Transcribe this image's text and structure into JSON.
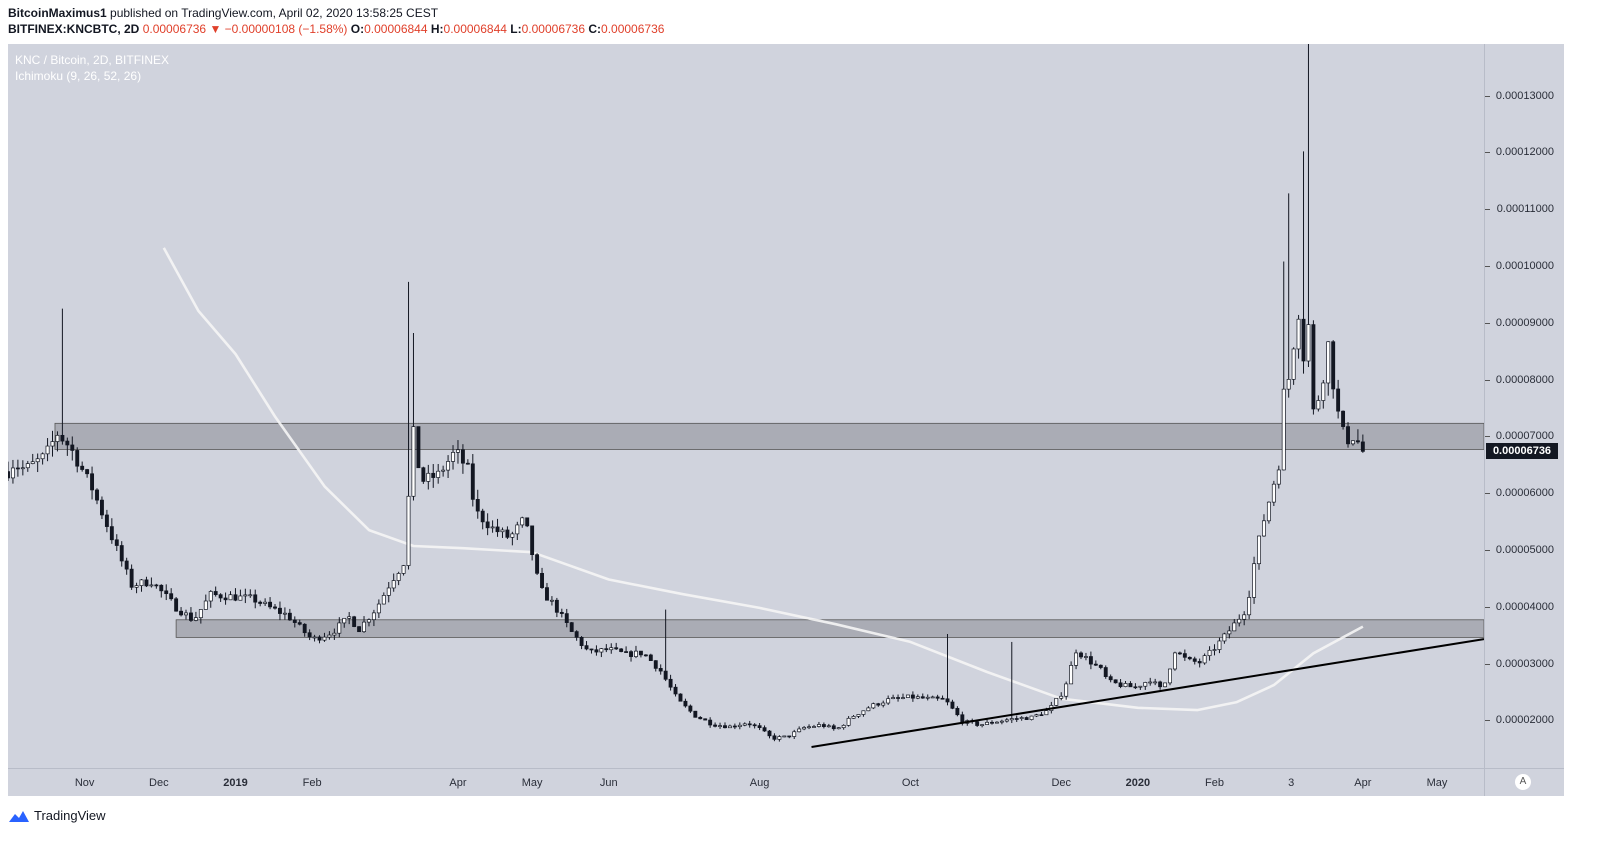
{
  "header": {
    "author": "BitcoinMaximus1",
    "published_text": " published on TradingView.com, April 02, 2020 13:58:25 CEST",
    "symbol": "BITFINEX:KNCBTC, 2D",
    "last": "0.00006736",
    "change": "▼ −0.00000108 (−1.58%)",
    "o_label": "O:",
    "o_value": "0.00006844",
    "h_label": "H:",
    "h_value": "0.00006844",
    "l_label": "L:",
    "l_value": "0.00006736",
    "c_label": "C:",
    "c_value": "0.00006736"
  },
  "legend": {
    "title": "KNC / Bitcoin, 2D, BITFINEX",
    "indicator": "Ichimoku (9, 26, 52, 26)"
  },
  "price_badge": "0.00006736",
  "auto_label": "A",
  "footer": {
    "brand": "TradingView"
  },
  "colors": {
    "background": "#d0d3dd",
    "candle_up_fill": "#ffffff",
    "candle_down_fill": "#131722",
    "candle_wick": "#131722",
    "zone": "#8a8c93",
    "moving_average": "#f5f5f5",
    "trendline": "#000000",
    "logo_blue": "#2962ff"
  },
  "chart_data": {
    "type": "candlestick",
    "title": "KNC / Bitcoin, 2D, BITFINEX",
    "indicator": "Ichimoku (9, 26, 52, 26)",
    "y_axis": {
      "range": [
        1.16e-05,
        0.0001391
      ],
      "ticks": [
        "0.00002000",
        "0.00003000",
        "0.00004000",
        "0.00005000",
        "0.00006000",
        "0.00007000",
        "0.00008000",
        "0.00009000",
        "0.00010000",
        "0.00011000",
        "0.00012000",
        "0.00013000"
      ],
      "tick_values": [
        2e-05,
        3e-05,
        4e-05,
        5e-05,
        6e-05,
        7e-05,
        8e-05,
        9e-05,
        0.0001,
        0.00011,
        0.00012,
        0.00013
      ],
      "position": "right"
    },
    "x_axis": {
      "range": [
        "2018-10-01",
        "2020-05-20"
      ],
      "ticks": [
        {
          "label": "Nov",
          "date": "2018-11-01",
          "bold": false
        },
        {
          "label": "Dec",
          "date": "2018-12-01",
          "bold": false
        },
        {
          "label": "2019",
          "date": "2019-01-01",
          "bold": true
        },
        {
          "label": "Feb",
          "date": "2019-02-01",
          "bold": false
        },
        {
          "label": "Apr",
          "date": "2019-04-01",
          "bold": false
        },
        {
          "label": "May",
          "date": "2019-05-01",
          "bold": false
        },
        {
          "label": "Jun",
          "date": "2019-06-01",
          "bold": false
        },
        {
          "label": "Aug",
          "date": "2019-08-01",
          "bold": false
        },
        {
          "label": "Oct",
          "date": "2019-10-01",
          "bold": false
        },
        {
          "label": "Dec",
          "date": "2019-12-01",
          "bold": false
        },
        {
          "label": "2020",
          "date": "2020-01-01",
          "bold": true
        },
        {
          "label": "Feb",
          "date": "2020-02-01",
          "bold": false
        },
        {
          "label": "3",
          "date": "2020-03-03",
          "bold": false
        },
        {
          "label": "Apr",
          "date": "2020-04-01",
          "bold": false
        },
        {
          "label": "May",
          "date": "2020-05-01",
          "bold": false
        }
      ]
    },
    "grid": false,
    "last_price": 6.736e-05,
    "close_anchors": [
      [
        "2018-10-01",
        6.38e-05
      ],
      [
        "2018-10-03",
        6.51e-05
      ],
      [
        "2018-10-08",
        6.42e-05
      ],
      [
        "2018-10-16",
        6.65e-05
      ],
      [
        "2018-10-21",
        7.05e-05
      ],
      [
        "2018-10-26",
        6.82e-05
      ],
      [
        "2018-11-04",
        6.09e-05
      ],
      [
        "2018-11-13",
        5.12e-05
      ],
      [
        "2018-11-20",
        4.38e-05
      ],
      [
        "2018-11-28",
        4.45e-05
      ],
      [
        "2018-12-03",
        4.22e-05
      ],
      [
        "2018-12-08",
        3.99e-05
      ],
      [
        "2018-12-15",
        3.76e-05
      ],
      [
        "2018-12-22",
        4.21e-05
      ],
      [
        "2018-12-30",
        4.18e-05
      ],
      [
        "2019-01-08",
        4.14e-05
      ],
      [
        "2019-01-15",
        3.98e-05
      ],
      [
        "2019-01-22",
        3.85e-05
      ],
      [
        "2019-02-01",
        3.42e-05
      ],
      [
        "2019-02-09",
        3.55e-05
      ],
      [
        "2019-02-16",
        3.81e-05
      ],
      [
        "2019-02-20",
        3.61e-05
      ],
      [
        "2019-02-27",
        3.98e-05
      ],
      [
        "2019-03-05",
        4.45e-05
      ],
      [
        "2019-03-10",
        4.78e-05
      ],
      [
        "2019-03-14",
        7.05e-05
      ],
      [
        "2019-03-17",
        6.21e-05
      ],
      [
        "2019-03-24",
        6.32e-05
      ],
      [
        "2019-03-31",
        6.74e-05
      ],
      [
        "2019-04-05",
        6.41e-05
      ],
      [
        "2019-04-08",
        5.68e-05
      ],
      [
        "2019-04-15",
        5.38e-05
      ],
      [
        "2019-04-22",
        5.21e-05
      ],
      [
        "2019-04-28",
        5.55e-05
      ],
      [
        "2019-05-04",
        4.32e-05
      ],
      [
        "2019-05-10",
        4.02e-05
      ],
      [
        "2019-05-17",
        3.55e-05
      ],
      [
        "2019-05-24",
        3.19e-05
      ],
      [
        "2019-06-01",
        3.25e-05
      ],
      [
        "2019-06-08",
        3.16e-05
      ],
      [
        "2019-06-15",
        3.19e-05
      ],
      [
        "2019-06-22",
        2.87e-05
      ],
      [
        "2019-06-29",
        2.35e-05
      ],
      [
        "2019-07-06",
        2.08e-05
      ],
      [
        "2019-07-13",
        1.93e-05
      ],
      [
        "2019-07-20",
        1.89e-05
      ],
      [
        "2019-07-27",
        1.96e-05
      ],
      [
        "2019-08-01",
        1.85e-05
      ],
      [
        "2019-08-06",
        1.68e-05
      ],
      [
        "2019-08-12",
        1.71e-05
      ],
      [
        "2019-08-19",
        1.87e-05
      ],
      [
        "2019-08-26",
        1.92e-05
      ],
      [
        "2019-09-01",
        1.83e-05
      ],
      [
        "2019-09-08",
        2.08e-05
      ],
      [
        "2019-09-15",
        2.25e-05
      ],
      [
        "2019-09-22",
        2.36e-05
      ],
      [
        "2019-10-01",
        2.41e-05
      ],
      [
        "2019-10-08",
        2.38e-05
      ],
      [
        "2019-10-15",
        2.36e-05
      ],
      [
        "2019-10-22",
        1.98e-05
      ],
      [
        "2019-10-29",
        1.92e-05
      ],
      [
        "2019-11-05",
        1.98e-05
      ],
      [
        "2019-11-12",
        2.03e-05
      ],
      [
        "2019-11-19",
        2.05e-05
      ],
      [
        "2019-11-26",
        2.18e-05
      ],
      [
        "2019-12-02",
        2.52e-05
      ],
      [
        "2019-12-07",
        3.23e-05
      ],
      [
        "2019-12-12",
        3.06e-05
      ],
      [
        "2019-12-17",
        2.89e-05
      ],
      [
        "2019-12-20",
        2.68e-05
      ],
      [
        "2019-12-26",
        2.61e-05
      ],
      [
        "2019-12-31",
        2.58e-05
      ],
      [
        "2020-01-06",
        2.72e-05
      ],
      [
        "2020-01-11",
        2.52e-05
      ],
      [
        "2020-01-16",
        3.23e-05
      ],
      [
        "2020-01-21",
        3.05e-05
      ],
      [
        "2020-01-26",
        3.02e-05
      ],
      [
        "2020-01-30",
        3.18e-05
      ],
      [
        "2020-02-04",
        3.42e-05
      ],
      [
        "2020-02-09",
        3.69e-05
      ],
      [
        "2020-02-14",
        3.98e-05
      ],
      [
        "2020-02-17",
        4.75e-05
      ],
      [
        "2020-02-20",
        5.38e-05
      ],
      [
        "2020-02-24",
        6.02e-05
      ],
      [
        "2020-02-27",
        6.52e-05
      ],
      [
        "2020-02-29",
        7.75e-05
      ],
      [
        "2020-03-02",
        8.02e-05
      ],
      [
        "2020-03-04",
        8.65e-05
      ],
      [
        "2020-03-06",
        9.21e-05
      ],
      [
        "2020-03-08",
        8.42e-05
      ],
      [
        "2020-03-10",
        8.95e-05
      ],
      [
        "2020-03-12",
        7.43e-05
      ],
      [
        "2020-03-15",
        7.81e-05
      ],
      [
        "2020-03-18",
        8.62e-05
      ],
      [
        "2020-03-20",
        7.95e-05
      ],
      [
        "2020-03-23",
        7.12e-05
      ],
      [
        "2020-03-26",
        6.95e-05
      ],
      [
        "2020-03-29",
        7.02e-05
      ],
      [
        "2020-03-31",
        6.78e-05
      ],
      [
        "2020-04-02",
        6.736e-05
      ]
    ],
    "spikes": [
      {
        "date": "2018-10-23",
        "high": 9.25e-05
      },
      {
        "date": "2019-03-13",
        "high": 9.72e-05
      },
      {
        "date": "2019-03-15",
        "high": 8.82e-05
      },
      {
        "date": "2019-06-24",
        "high": 3.95e-05
      },
      {
        "date": "2019-10-16",
        "high": 3.52e-05
      },
      {
        "date": "2019-11-11",
        "high": 3.38e-05
      },
      {
        "date": "2020-02-29",
        "high": 0.0001008
      },
      {
        "date": "2020-03-03",
        "high": 0.0001128
      },
      {
        "date": "2020-03-09",
        "high": 0.0001202
      },
      {
        "date": "2020-03-11",
        "high": 0.0001391
      }
    ],
    "moving_average": [
      [
        "2018-12-03",
        0.0001032
      ],
      [
        "2018-12-17",
        9.21e-05
      ],
      [
        "2019-01-01",
        8.45e-05
      ],
      [
        "2019-01-17",
        7.35e-05
      ],
      [
        "2019-02-06",
        6.12e-05
      ],
      [
        "2019-02-24",
        5.35e-05
      ],
      [
        "2019-03-14",
        5.07e-05
      ],
      [
        "2019-04-03",
        5.03e-05
      ],
      [
        "2019-05-01",
        4.96e-05
      ],
      [
        "2019-06-01",
        4.48e-05
      ],
      [
        "2019-07-01",
        4.22e-05
      ],
      [
        "2019-08-01",
        3.98e-05
      ],
      [
        "2019-09-01",
        3.69e-05
      ],
      [
        "2019-10-01",
        3.38e-05
      ],
      [
        "2019-11-01",
        2.85e-05
      ],
      [
        "2019-12-01",
        2.38e-05
      ],
      [
        "2020-01-01",
        2.22e-05
      ],
      [
        "2020-01-25",
        2.18e-05
      ],
      [
        "2020-02-10",
        2.32e-05
      ],
      [
        "2020-02-25",
        2.62e-05
      ],
      [
        "2020-03-12",
        3.18e-05
      ],
      [
        "2020-04-01",
        3.65e-05
      ]
    ],
    "zones": [
      {
        "from": "2018-10-20",
        "to": "2020-05-20",
        "low": 6.77e-05,
        "high": 7.23e-05
      },
      {
        "from": "2018-12-08",
        "to": "2020-05-20",
        "low": 3.46e-05,
        "high": 3.77e-05
      }
    ],
    "trendline": {
      "start": [
        "2019-08-22",
        1.53e-05
      ],
      "end": [
        "2020-05-20",
        3.43e-05
      ]
    }
  }
}
